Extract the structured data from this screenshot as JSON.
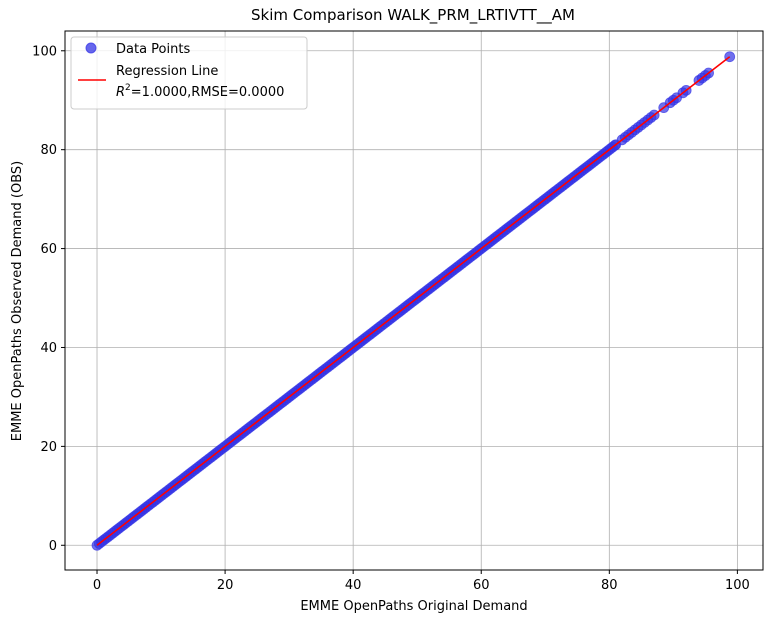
{
  "chart_data": {
    "type": "scatter",
    "title": "Skim Comparison WALK_PRM_LRTIVTT__AM",
    "xlabel": "EMME OpenPaths Original Demand",
    "ylabel": "EMME OpenPaths Observed Demand (OBS)",
    "xlim": [
      -5,
      104
    ],
    "ylim": [
      -5,
      104
    ],
    "xticks": [
      0,
      20,
      40,
      60,
      80,
      100
    ],
    "yticks": [
      0,
      20,
      40,
      60,
      80,
      100
    ],
    "grid": true,
    "legend_position": "top-left",
    "series": [
      {
        "name": "Data Points",
        "kind": "scatter",
        "color": "#3333e6",
        "dense_range": [
          0,
          81
        ],
        "sparse_points": [
          81,
          82,
          82.5,
          83,
          83.5,
          84,
          84.5,
          85,
          85.5,
          86,
          86.5,
          87,
          88.5,
          89.5,
          90,
          90.5,
          91.5,
          92,
          94,
          94.5,
          95,
          95.5,
          98.8
        ]
      },
      {
        "name": "Regression Line",
        "kind": "line",
        "color": "#ff0000",
        "x": [
          0,
          98.8
        ],
        "y": [
          0,
          98.8
        ]
      }
    ],
    "legend": {
      "points_label": "Data Points",
      "line_label": "Regression Line",
      "stats_r2_prefix": "R",
      "stats_r2_sup": "2",
      "stats_rest": "=1.0000,RMSE=0.0000"
    }
  }
}
